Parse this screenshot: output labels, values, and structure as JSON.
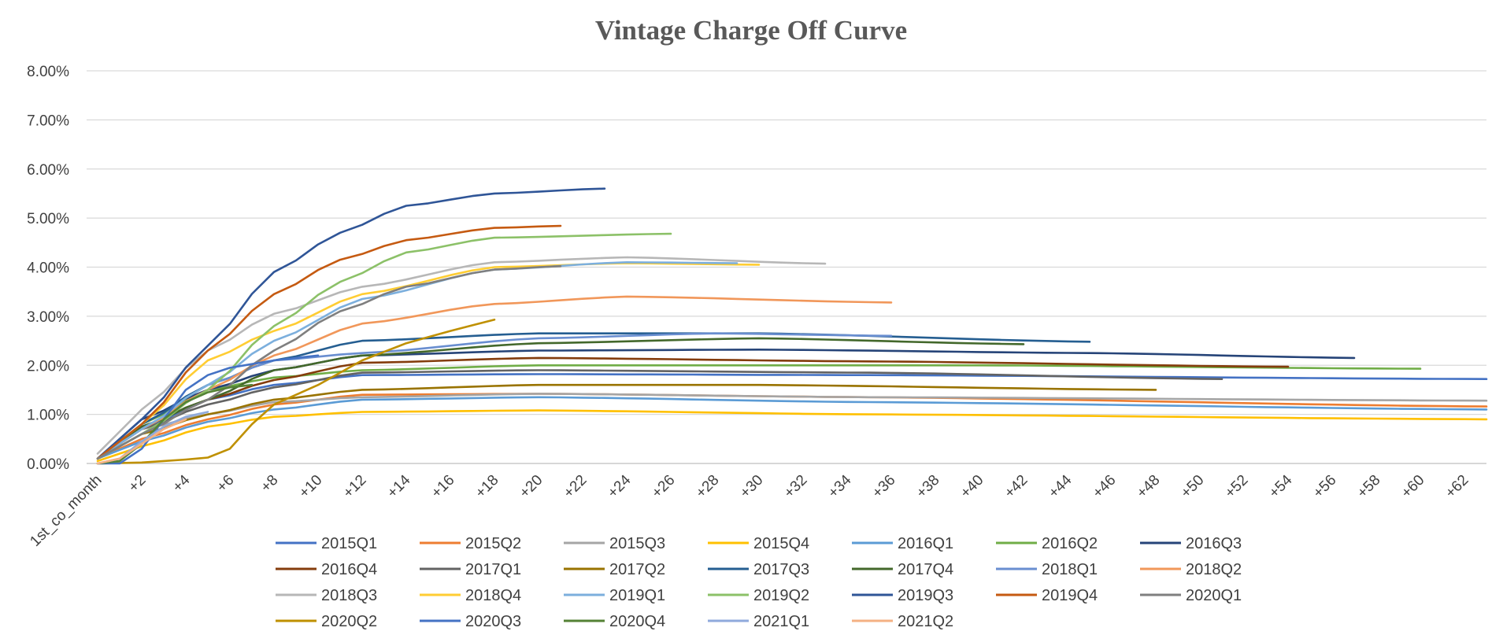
{
  "chart_data": {
    "type": "line",
    "title": "Vintage Charge Off Curve",
    "xlabel": "",
    "ylabel": "",
    "ylim": [
      0,
      8
    ],
    "y_ticks": [
      "0.00%",
      "1.00%",
      "2.00%",
      "3.00%",
      "4.00%",
      "5.00%",
      "6.00%",
      "7.00%",
      "8.00%"
    ],
    "x_ticks": [
      "1st_co_month",
      "+2",
      "+4",
      "+6",
      "+8",
      "+10",
      "+12",
      "+14",
      "+16",
      "+18",
      "+20",
      "+22",
      "+24",
      "+26",
      "+28",
      "+30",
      "+32",
      "+34",
      "+36",
      "+38",
      "+40",
      "+42",
      "+44",
      "+46",
      "+48",
      "+50",
      "+52",
      "+54",
      "+56",
      "+58",
      "+60",
      "+62"
    ],
    "x_count": 64,
    "grid": true,
    "legend_position": "bottom",
    "series": [
      {
        "name": "2015Q1",
        "color": "#4472C4",
        "anchors": [
          [
            0,
            0.1
          ],
          [
            2,
            0.7
          ],
          [
            5,
            1.3
          ],
          [
            8,
            1.6
          ],
          [
            12,
            1.8
          ],
          [
            20,
            1.82
          ],
          [
            35,
            1.8
          ],
          [
            63,
            1.72
          ]
        ]
      },
      {
        "name": "2015Q2",
        "color": "#ED7D31",
        "anchors": [
          [
            0,
            0.1
          ],
          [
            2,
            0.5
          ],
          [
            5,
            0.9
          ],
          [
            8,
            1.2
          ],
          [
            12,
            1.4
          ],
          [
            20,
            1.42
          ],
          [
            35,
            1.35
          ],
          [
            63,
            1.16
          ]
        ]
      },
      {
        "name": "2015Q3",
        "color": "#A5A5A5",
        "anchors": [
          [
            0,
            0.1
          ],
          [
            2,
            0.7
          ],
          [
            5,
            1.0
          ],
          [
            8,
            1.25
          ],
          [
            12,
            1.35
          ],
          [
            20,
            1.42
          ],
          [
            35,
            1.35
          ],
          [
            63,
            1.28
          ]
        ]
      },
      {
        "name": "2015Q4",
        "color": "#FFC000",
        "anchors": [
          [
            0,
            0.05
          ],
          [
            2,
            0.35
          ],
          [
            5,
            0.75
          ],
          [
            8,
            0.95
          ],
          [
            12,
            1.05
          ],
          [
            20,
            1.08
          ],
          [
            35,
            1.0
          ],
          [
            63,
            0.9
          ]
        ]
      },
      {
        "name": "2016Q1",
        "color": "#5B9BD5",
        "anchors": [
          [
            0,
            0.1
          ],
          [
            2,
            0.45
          ],
          [
            5,
            0.85
          ],
          [
            8,
            1.1
          ],
          [
            12,
            1.3
          ],
          [
            20,
            1.35
          ],
          [
            35,
            1.25
          ],
          [
            63,
            1.1
          ]
        ]
      },
      {
        "name": "2016Q2",
        "color": "#70AD47",
        "anchors": [
          [
            0,
            0.1
          ],
          [
            2,
            0.8
          ],
          [
            5,
            1.5
          ],
          [
            8,
            1.75
          ],
          [
            12,
            1.9
          ],
          [
            20,
            2.0
          ],
          [
            40,
            2.0
          ],
          [
            60,
            1.93
          ]
        ]
      },
      {
        "name": "2016Q3",
        "color": "#264478",
        "anchors": [
          [
            0,
            0.1
          ],
          [
            2,
            0.9
          ],
          [
            5,
            1.5
          ],
          [
            8,
            1.9
          ],
          [
            12,
            2.2
          ],
          [
            20,
            2.3
          ],
          [
            30,
            2.32
          ],
          [
            45,
            2.25
          ],
          [
            57,
            2.15
          ]
        ]
      },
      {
        "name": "2016Q4",
        "color": "#843C0C",
        "anchors": [
          [
            0,
            0.1
          ],
          [
            2,
            0.75
          ],
          [
            5,
            1.3
          ],
          [
            8,
            1.7
          ],
          [
            12,
            2.05
          ],
          [
            20,
            2.15
          ],
          [
            35,
            2.08
          ],
          [
            54,
            1.97
          ]
        ]
      },
      {
        "name": "2017Q1",
        "color": "#636363",
        "anchors": [
          [
            0,
            0.1
          ],
          [
            2,
            0.7
          ],
          [
            5,
            1.2
          ],
          [
            8,
            1.55
          ],
          [
            12,
            1.85
          ],
          [
            20,
            1.9
          ],
          [
            35,
            1.85
          ],
          [
            51,
            1.72
          ]
        ]
      },
      {
        "name": "2017Q2",
        "color": "#997300",
        "anchors": [
          [
            0,
            0.1
          ],
          [
            2,
            0.6
          ],
          [
            5,
            1.0
          ],
          [
            8,
            1.3
          ],
          [
            12,
            1.5
          ],
          [
            20,
            1.6
          ],
          [
            30,
            1.6
          ],
          [
            48,
            1.5
          ]
        ]
      },
      {
        "name": "2017Q3",
        "color": "#255E91",
        "anchors": [
          [
            0,
            0.1
          ],
          [
            2,
            0.8
          ],
          [
            5,
            1.6
          ],
          [
            8,
            2.1
          ],
          [
            12,
            2.5
          ],
          [
            20,
            2.65
          ],
          [
            30,
            2.65
          ],
          [
            45,
            2.48
          ]
        ]
      },
      {
        "name": "2017Q4",
        "color": "#43682B",
        "anchors": [
          [
            0,
            0.1
          ],
          [
            2,
            0.75
          ],
          [
            5,
            1.3
          ],
          [
            8,
            1.9
          ],
          [
            12,
            2.2
          ],
          [
            20,
            2.45
          ],
          [
            30,
            2.55
          ],
          [
            42,
            2.43
          ]
        ]
      },
      {
        "name": "2018Q1",
        "color": "#698ED0",
        "anchors": [
          [
            0,
            0.1
          ],
          [
            2,
            0.7
          ],
          [
            5,
            1.6
          ],
          [
            8,
            2.1
          ],
          [
            12,
            2.25
          ],
          [
            20,
            2.55
          ],
          [
            28,
            2.65
          ],
          [
            36,
            2.6
          ]
        ]
      },
      {
        "name": "2018Q2",
        "color": "#F1975A",
        "anchors": [
          [
            0,
            0.1
          ],
          [
            2,
            0.7
          ],
          [
            5,
            1.5
          ],
          [
            8,
            2.2
          ],
          [
            12,
            2.85
          ],
          [
            18,
            3.25
          ],
          [
            24,
            3.4
          ],
          [
            36,
            3.28
          ]
        ]
      },
      {
        "name": "2018Q3",
        "color": "#B7B7B7",
        "anchors": [
          [
            0,
            0.2
          ],
          [
            2,
            1.1
          ],
          [
            5,
            2.3
          ],
          [
            8,
            3.05
          ],
          [
            12,
            3.6
          ],
          [
            18,
            4.1
          ],
          [
            24,
            4.2
          ],
          [
            33,
            4.07
          ]
        ]
      },
      {
        "name": "2018Q4",
        "color": "#FFCD33",
        "anchors": [
          [
            0,
            0.1
          ],
          [
            2,
            0.8
          ],
          [
            5,
            2.1
          ],
          [
            8,
            2.7
          ],
          [
            12,
            3.45
          ],
          [
            18,
            4.0
          ],
          [
            24,
            4.08
          ],
          [
            30,
            4.05
          ]
        ]
      },
      {
        "name": "2019Q1",
        "color": "#7CAFDD",
        "anchors": [
          [
            0,
            0.1
          ],
          [
            2,
            0.7
          ],
          [
            5,
            1.6
          ],
          [
            8,
            2.5
          ],
          [
            12,
            3.35
          ],
          [
            18,
            3.95
          ],
          [
            24,
            4.1
          ],
          [
            29,
            4.08
          ]
        ]
      },
      {
        "name": "2019Q2",
        "color": "#8CC168",
        "anchors": [
          [
            0,
            0.1
          ],
          [
            2,
            0.6
          ],
          [
            5,
            1.5
          ],
          [
            8,
            2.8
          ],
          [
            11,
            3.7
          ],
          [
            14,
            4.3
          ],
          [
            18,
            4.6
          ],
          [
            26,
            4.68
          ]
        ]
      },
      {
        "name": "2019Q3",
        "color": "#2F5597",
        "anchors": [
          [
            0,
            0.1
          ],
          [
            2,
            0.9
          ],
          [
            5,
            2.4
          ],
          [
            8,
            3.9
          ],
          [
            11,
            4.7
          ],
          [
            14,
            5.25
          ],
          [
            18,
            5.5
          ],
          [
            23,
            5.6
          ]
        ]
      },
      {
        "name": "2019Q4",
        "color": "#C55A11",
        "anchors": [
          [
            0,
            0.1
          ],
          [
            2,
            0.8
          ],
          [
            5,
            2.3
          ],
          [
            8,
            3.45
          ],
          [
            11,
            4.15
          ],
          [
            14,
            4.55
          ],
          [
            18,
            4.8
          ],
          [
            21,
            4.84
          ]
        ]
      },
      {
        "name": "2020Q1",
        "color": "#7F7F7F",
        "anchors": [
          [
            0,
            0.1
          ],
          [
            2,
            0.6
          ],
          [
            5,
            1.3
          ],
          [
            8,
            2.3
          ],
          [
            11,
            3.1
          ],
          [
            14,
            3.6
          ],
          [
            18,
            3.95
          ],
          [
            21,
            4.02
          ]
        ]
      },
      {
        "name": "2020Q2",
        "color": "#BF9000",
        "anchors": [
          [
            0,
            0.0
          ],
          [
            2,
            0.02
          ],
          [
            4,
            0.08
          ],
          [
            5,
            0.12
          ],
          [
            6,
            0.3
          ],
          [
            7,
            0.8
          ],
          [
            8,
            1.2
          ],
          [
            10,
            1.6
          ],
          [
            12,
            2.1
          ],
          [
            14,
            2.45
          ],
          [
            16,
            2.7
          ],
          [
            18,
            2.93
          ]
        ]
      },
      {
        "name": "2020Q3",
        "color": "#4472C4",
        "anchors": [
          [
            0,
            0.0
          ],
          [
            1,
            0.0
          ],
          [
            2,
            0.3
          ],
          [
            3,
            0.9
          ],
          [
            4,
            1.5
          ],
          [
            5,
            1.8
          ],
          [
            6,
            1.95
          ],
          [
            8,
            2.1
          ],
          [
            10,
            2.2
          ]
        ]
      },
      {
        "name": "2020Q4",
        "color": "#548235",
        "anchors": [
          [
            0,
            0.0
          ],
          [
            1,
            0.05
          ],
          [
            2,
            0.4
          ],
          [
            3,
            0.9
          ],
          [
            4,
            1.25
          ],
          [
            5,
            1.45
          ],
          [
            6,
            1.55
          ],
          [
            7,
            1.6
          ]
        ]
      },
      {
        "name": "2021Q1",
        "color": "#8FAADC",
        "anchors": [
          [
            0,
            0.0
          ],
          [
            1,
            0.1
          ],
          [
            2,
            0.45
          ],
          [
            3,
            0.75
          ],
          [
            4,
            0.95
          ],
          [
            5,
            1.05
          ]
        ]
      },
      {
        "name": "2021Q2",
        "color": "#F4B183",
        "anchors": [
          [
            0,
            0.0
          ],
          [
            1,
            0.1
          ],
          [
            2,
            0.4
          ],
          [
            3,
            0.7
          ],
          [
            4,
            0.9
          ]
        ]
      }
    ]
  }
}
